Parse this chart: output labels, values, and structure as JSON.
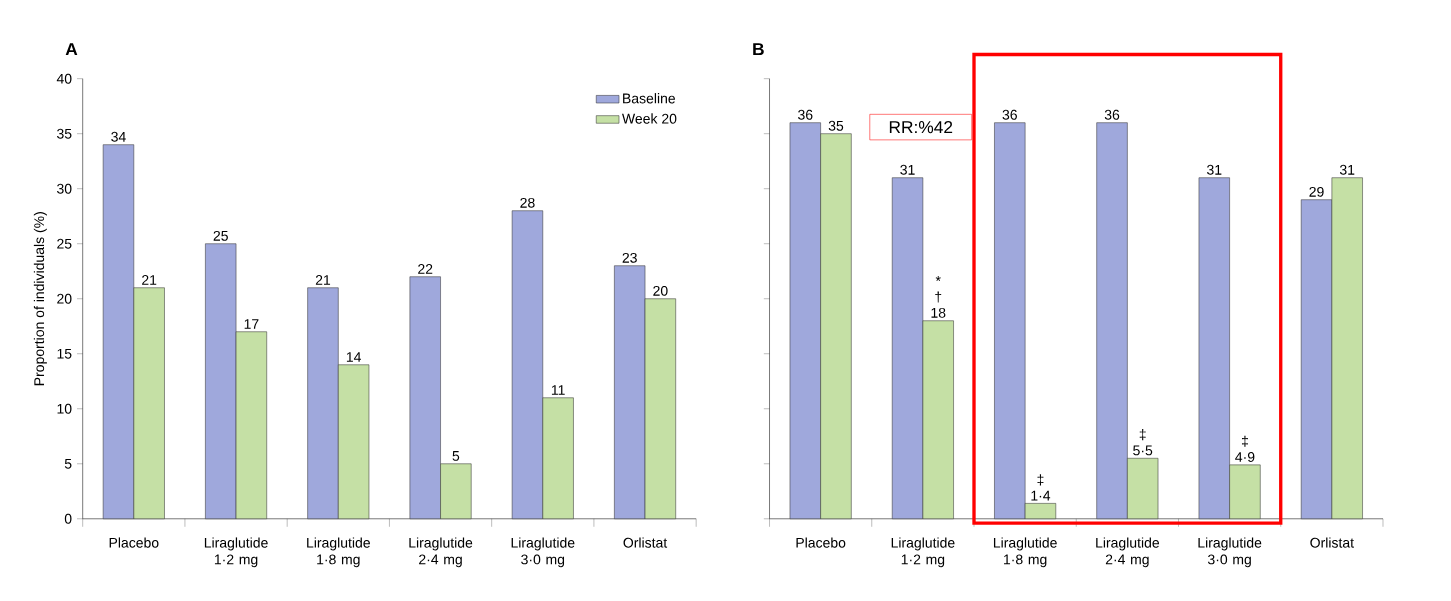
{
  "chart_data": [
    {
      "type": "bar",
      "title": "A",
      "categories": [
        "Placebo",
        "Liraglutide 1·2 mg",
        "Liraglutide 1·8 mg",
        "Liraglutide 2·4 mg",
        "Liraglutide 3·0 mg",
        "Orlistat"
      ],
      "series": [
        {
          "name": "Baseline",
          "color": "#9fa8dc",
          "values": [
            34,
            25,
            21,
            22,
            28,
            23
          ],
          "value_labels": [
            "34",
            "25",
            "21",
            "22",
            "28",
            "23"
          ]
        },
        {
          "name": "Week 20",
          "color": "#c5e0a5",
          "values": [
            21,
            17,
            14,
            5,
            11,
            20
          ],
          "value_labels": [
            "21",
            "17",
            "14",
            "5",
            "11",
            "20"
          ]
        }
      ],
      "ylabel": "Proportion of individuals (%)",
      "ylim": [
        0,
        40
      ],
      "yticks": [
        0,
        5,
        10,
        15,
        20,
        25,
        30,
        35,
        40
      ],
      "legend": "top right"
    },
    {
      "type": "bar",
      "title": "B",
      "categories": [
        "Placebo",
        "Liraglutide 1·2 mg",
        "Liraglutide 1·8 mg",
        "Liraglutide 2·4 mg",
        "Liraglutide 3·0 mg",
        "Orlistat"
      ],
      "series": [
        {
          "color": "#9fa8dc",
          "values": [
            36,
            31,
            36,
            36,
            31,
            29
          ],
          "value_labels": [
            "36",
            "31",
            "36",
            "36",
            "31",
            "29"
          ]
        },
        {
          "color": "#c5e0a5",
          "values": [
            35,
            18,
            1.4,
            5.5,
            4.9,
            31
          ],
          "value_labels": [
            "35",
            "* † 18",
            "‡ 1·4",
            "‡ 5·5",
            "‡ 4·9",
            "31"
          ]
        }
      ],
      "ylim": [
        0,
        40
      ],
      "yticks": [
        0,
        5,
        10,
        15,
        20,
        25,
        30,
        35,
        40
      ],
      "tick_labels": "x",
      "annotations": [
        "RR:%42"
      ]
    }
  ]
}
